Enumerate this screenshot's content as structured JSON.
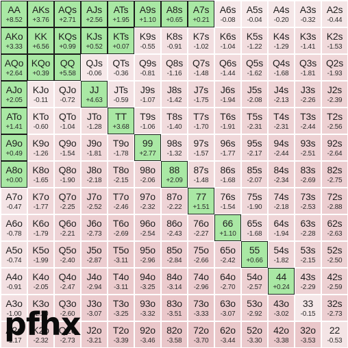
{
  "colors": {
    "positive": "#a9e8a4",
    "negative_light": "#f6e9ea",
    "negative_dark": "#e9c5c8",
    "positive_border": "#1a1a1a"
  },
  "watermark": "pfhx",
  "grid": [
    [
      [
        "AA",
        "+8.52"
      ],
      [
        "AKs",
        "+3.76"
      ],
      [
        "AQs",
        "+2.71"
      ],
      [
        "AJs",
        "+2.56"
      ],
      [
        "ATs",
        "+1.95"
      ],
      [
        "A9s",
        "+1.10"
      ],
      [
        "A8s",
        "+0.65"
      ],
      [
        "A7s",
        "+0.21"
      ],
      [
        "A6s",
        "-0.08"
      ],
      [
        "A5s",
        "-0.04"
      ],
      [
        "A4s",
        "-0.20"
      ],
      [
        "A3s",
        "-0.32"
      ],
      [
        "A2s",
        "-0.44"
      ]
    ],
    [
      [
        "AKo",
        "+3.33"
      ],
      [
        "KK",
        "+6.56"
      ],
      [
        "KQs",
        "+0.99"
      ],
      [
        "KJs",
        "+0.52"
      ],
      [
        "KTs",
        "+0.07"
      ],
      [
        "K9s",
        "-0.55"
      ],
      [
        "K8s",
        "-0.91"
      ],
      [
        "K7s",
        "-1.02"
      ],
      [
        "K6s",
        "-1.04"
      ],
      [
        "K5s",
        "-1.22"
      ],
      [
        "K4s",
        "-1.29"
      ],
      [
        "K3s",
        "-1.41"
      ],
      [
        "K2s",
        "-1.53"
      ]
    ],
    [
      [
        "AQo",
        "+2.64"
      ],
      [
        "KQo",
        "+0.39"
      ],
      [
        "QQ",
        "+5.58"
      ],
      [
        "QJs",
        "-0.06"
      ],
      [
        "QTs",
        "-0.36"
      ],
      [
        "Q9s",
        "-0.81"
      ],
      [
        "Q8s",
        "-1.16"
      ],
      [
        "Q7s",
        "-1.48"
      ],
      [
        "Q6s",
        "-1.44"
      ],
      [
        "Q5s",
        "-1.62"
      ],
      [
        "Q4s",
        "-1.68"
      ],
      [
        "Q3s",
        "-1.81"
      ],
      [
        "Q2s",
        "-1.93"
      ]
    ],
    [
      [
        "AJo",
        "+2.05"
      ],
      [
        "KJo",
        "-0.11"
      ],
      [
        "QJo",
        "-0.72"
      ],
      [
        "JJ",
        "+4.63"
      ],
      [
        "JTs",
        "-0.59"
      ],
      [
        "J9s",
        "-1.07"
      ],
      [
        "J8s",
        "-1.42"
      ],
      [
        "J7s",
        "-1.75"
      ],
      [
        "J6s",
        "-1.94"
      ],
      [
        "J5s",
        "-2.08"
      ],
      [
        "J4s",
        "-2.13"
      ],
      [
        "J3s",
        "-2.26"
      ],
      [
        "J2s",
        "-2.39"
      ]
    ],
    [
      [
        "ATo",
        "+1.41"
      ],
      [
        "KTo",
        "-0.60"
      ],
      [
        "QTo",
        "-1.04"
      ],
      [
        "JTo",
        "-1.28"
      ],
      [
        "TT",
        "+3.68"
      ],
      [
        "T9s",
        "-1.06"
      ],
      [
        "T8s",
        "-1.40"
      ],
      [
        "T7s",
        "-1.70"
      ],
      [
        "T6s",
        "-1.91"
      ],
      [
        "T5s",
        "-2.31"
      ],
      [
        "T4s",
        "-2.31"
      ],
      [
        "T3s",
        "-2.44"
      ],
      [
        "T2s",
        "-2.56"
      ]
    ],
    [
      [
        "A9o",
        "+0.49"
      ],
      [
        "K9o",
        "-1.26"
      ],
      [
        "Q9o",
        "-1.54"
      ],
      [
        "J9o",
        "-1.81"
      ],
      [
        "T9o",
        "-1.78"
      ],
      [
        "99",
        "+2.77"
      ],
      [
        "98s",
        "-1.32"
      ],
      [
        "97s",
        "-1.57"
      ],
      [
        "96s",
        "-1.77"
      ],
      [
        "95s",
        "-2.17"
      ],
      [
        "94s",
        "-2.44"
      ],
      [
        "93s",
        "-2.51"
      ],
      [
        "92s",
        "-2.64"
      ]
    ],
    [
      [
        "A8o",
        "+0.00"
      ],
      [
        "K8o",
        "-1.65"
      ],
      [
        "Q8o",
        "-1.90"
      ],
      [
        "J8o",
        "-2.18"
      ],
      [
        "T8o",
        "-2.15"
      ],
      [
        "98o",
        "-2.06"
      ],
      [
        "88",
        "+2.09"
      ],
      [
        "87s",
        "-1.48"
      ],
      [
        "86s",
        "-1.68"
      ],
      [
        "85s",
        "-2.07"
      ],
      [
        "84s",
        "-2.34"
      ],
      [
        "83s",
        "-2.69"
      ],
      [
        "82s",
        "-2.75"
      ]
    ],
    [
      [
        "A7o",
        "-0.47"
      ],
      [
        "K7o",
        "-1.77"
      ],
      [
        "Q7o",
        "-2.25"
      ],
      [
        "J7o",
        "-2.52"
      ],
      [
        "T7o",
        "-2.46"
      ],
      [
        "97o",
        "-2.32"
      ],
      [
        "87o",
        "-2.22"
      ],
      [
        "77",
        "+1.51"
      ],
      [
        "76s",
        "-1.54"
      ],
      [
        "75s",
        "-1.90"
      ],
      [
        "74s",
        "-2.18"
      ],
      [
        "73s",
        "-2.53"
      ],
      [
        "72s",
        "-2.88"
      ]
    ],
    [
      [
        "A6o",
        "-0.78"
      ],
      [
        "K6o",
        "-1.79"
      ],
      [
        "Q6o",
        "-2.21"
      ],
      [
        "J6o",
        "-2.73"
      ],
      [
        "T6o",
        "-2.69"
      ],
      [
        "96o",
        "-2.54"
      ],
      [
        "86o",
        "-2.43"
      ],
      [
        "76o",
        "-2.27"
      ],
      [
        "66",
        "+1.10"
      ],
      [
        "65s",
        "-1.68"
      ],
      [
        "64s",
        "-1.94"
      ],
      [
        "63s",
        "-2.28"
      ],
      [
        "62s",
        "-2.63"
      ]
    ],
    [
      [
        "A5o",
        "-0.74"
      ],
      [
        "K5o",
        "-1.99"
      ],
      [
        "Q5o",
        "-2.40"
      ],
      [
        "J5o",
        "-2.87"
      ],
      [
        "T5o",
        "-3.11"
      ],
      [
        "95o",
        "-2.96"
      ],
      [
        "85o",
        "-2.84"
      ],
      [
        "75o",
        "-2.66"
      ],
      [
        "65o",
        "-2.42"
      ],
      [
        "55",
        "+0.66"
      ],
      [
        "54s",
        "-1.82"
      ],
      [
        "53s",
        "-2.15"
      ],
      [
        "52s",
        "-2.50"
      ]
    ],
    [
      [
        "A4o",
        "-0.91"
      ],
      [
        "K4o",
        "-2.05"
      ],
      [
        "Q4o",
        "-2.47"
      ],
      [
        "J4o",
        "-2.94"
      ],
      [
        "T4o",
        "-3.11"
      ],
      [
        "94o",
        "-3.25"
      ],
      [
        "84o",
        "-3.14"
      ],
      [
        "74o",
        "-2.96"
      ],
      [
        "64o",
        "-2.70"
      ],
      [
        "54o",
        "-2.57"
      ],
      [
        "44",
        "+0.24"
      ],
      [
        "43s",
        "-2.29"
      ],
      [
        "42s",
        "-2.59"
      ]
    ],
    [
      [
        "A3o",
        "-1.00"
      ],
      [
        "K3o",
        "-2.20"
      ],
      [
        "Q3o",
        "-2.60"
      ],
      [
        "J3o",
        "-3.07"
      ],
      [
        "T3o",
        "-3.25"
      ],
      [
        "93o",
        "-3.32"
      ],
      [
        "83o",
        "-3.51"
      ],
      [
        "73o",
        "-3.33"
      ],
      [
        "63o",
        "-3.07"
      ],
      [
        "53o",
        "-2.92"
      ],
      [
        "43o",
        "-3.02"
      ],
      [
        "33",
        "-0.15"
      ],
      [
        "32s",
        "-2.73"
      ]
    ],
    [
      [
        "A2o",
        "-1.17"
      ],
      [
        "K2o",
        "-2.32"
      ],
      [
        "Q2o",
        "-2.73"
      ],
      [
        "J2o",
        "-3.21"
      ],
      [
        "T2o",
        "-3.39"
      ],
      [
        "92o",
        "-3.46"
      ],
      [
        "82o",
        "-3.58"
      ],
      [
        "72o",
        "-3.70"
      ],
      [
        "62o",
        "-3.44"
      ],
      [
        "52o",
        "-3.30"
      ],
      [
        "42o",
        "-3.38"
      ],
      [
        "32o",
        "-3.53"
      ],
      [
        "22",
        "-0.53"
      ]
    ]
  ]
}
